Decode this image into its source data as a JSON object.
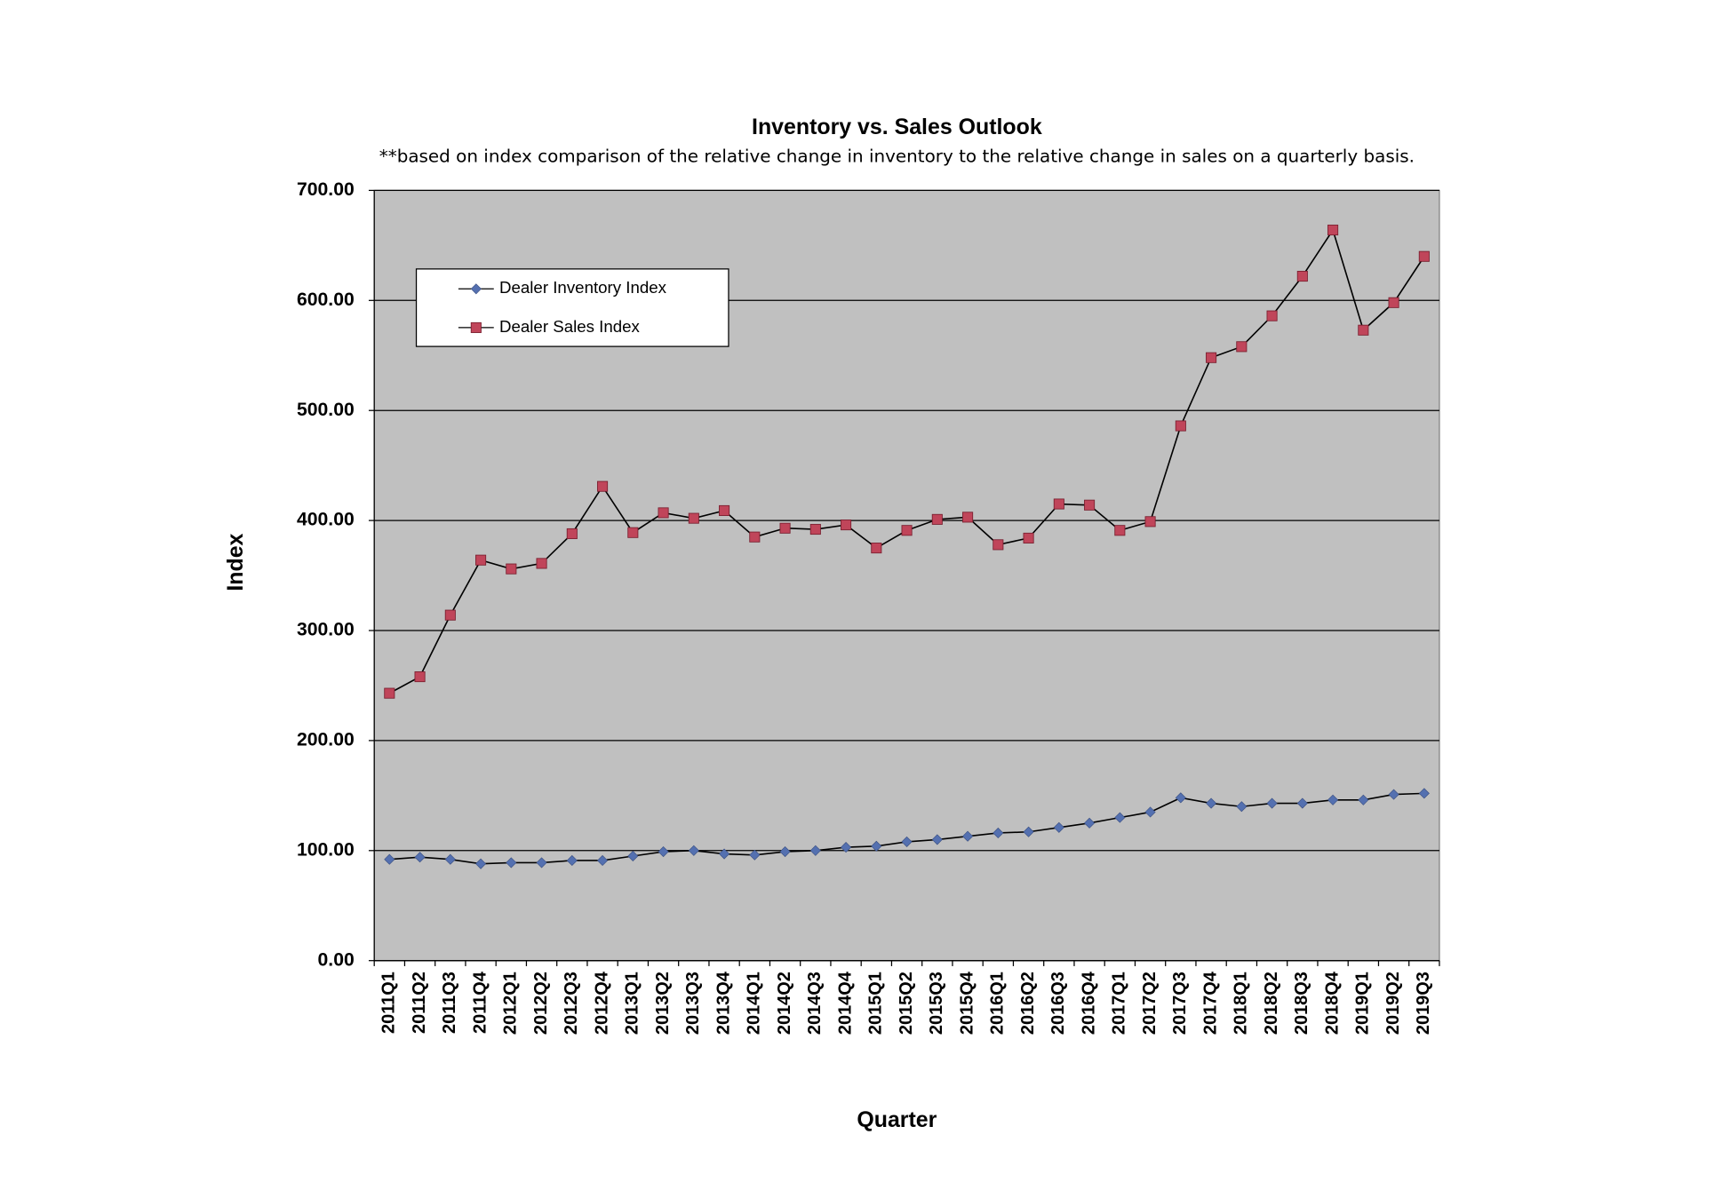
{
  "chart_data": {
    "type": "line",
    "title": "Inventory vs. Sales Outlook",
    "subtitle": "**based on index comparison of the relative change in inventory to the relative change in sales on a quarterly basis.",
    "x_label": "Quarter",
    "y_label": "Index",
    "categories": [
      "2011Q1",
      "2011Q2",
      "2011Q3",
      "2011Q4",
      "2012Q1",
      "2012Q2",
      "2012Q3",
      "2012Q4",
      "2013Q1",
      "2013Q2",
      "2013Q3",
      "2013Q4",
      "2014Q1",
      "2014Q2",
      "2014Q3",
      "2014Q4",
      "2015Q1",
      "2015Q2",
      "2015Q3",
      "2015Q4",
      "2016Q1",
      "2016Q2",
      "2016Q3",
      "2016Q4",
      "2017Q1",
      "2017Q2",
      "2017Q3",
      "2017Q4",
      "2018Q1",
      "2018Q2",
      "2018Q3",
      "2018Q4",
      "2019Q1",
      "2019Q2",
      "2019Q3"
    ],
    "series": [
      {
        "name": "Dealer Inventory Index",
        "color": "#5470b0",
        "marker": "diamond",
        "values": [
          92,
          94,
          92,
          88,
          89,
          89,
          91,
          91,
          95,
          99,
          100,
          97,
          96,
          99,
          100,
          103,
          104,
          108,
          110,
          113,
          116,
          117,
          121,
          125,
          130,
          135,
          148,
          143,
          140,
          143,
          143,
          146,
          146,
          151,
          152
        ]
      },
      {
        "name": "Dealer Sales Index",
        "color": "#c0455a",
        "marker": "square",
        "values": [
          243,
          258,
          314,
          364,
          356,
          361,
          388,
          431,
          389,
          407,
          402,
          409,
          385,
          393,
          392,
          396,
          375,
          391,
          401,
          403,
          378,
          384,
          415,
          414,
          391,
          399,
          486,
          548,
          558,
          586,
          622,
          664,
          573,
          598,
          640
        ]
      }
    ],
    "ylim": [
      0,
      700
    ],
    "yticks": [
      {
        "value": 0,
        "label": "0.00"
      },
      {
        "value": 100,
        "label": "100.00"
      },
      {
        "value": 200,
        "label": "200.00"
      },
      {
        "value": 300,
        "label": "300.00"
      },
      {
        "value": 400,
        "label": "400.00"
      },
      {
        "value": 500,
        "label": "500.00"
      },
      {
        "value": 600,
        "label": "600.00"
      },
      {
        "value": 700,
        "label": "700.00"
      }
    ],
    "grid": true,
    "plot_background": "#c0c0c0",
    "line_color": "#000000"
  }
}
